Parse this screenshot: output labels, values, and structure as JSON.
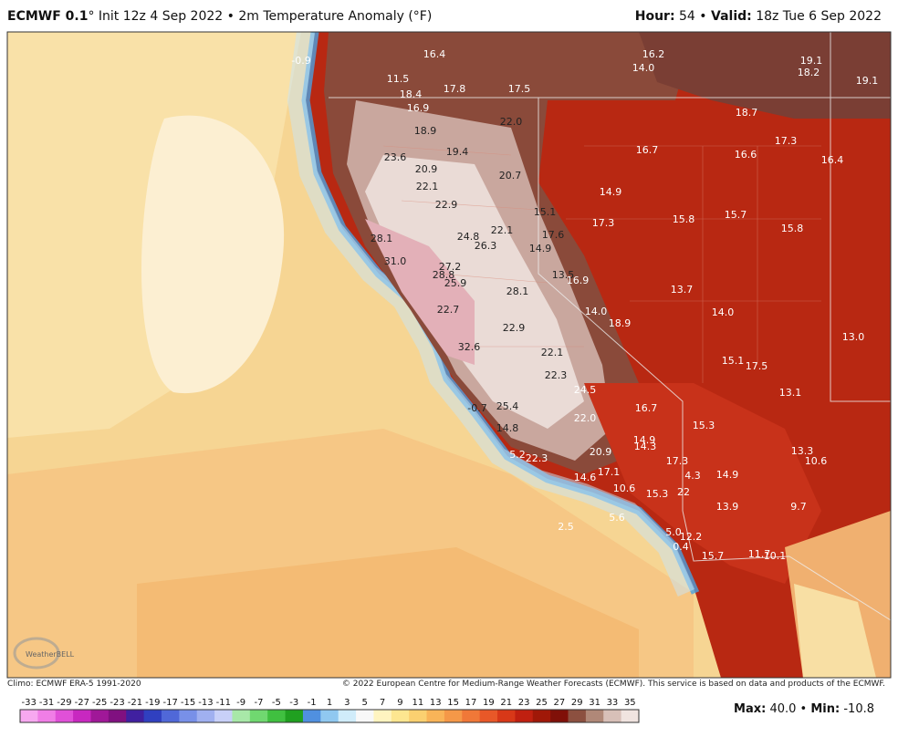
{
  "header": {
    "model": "ECMWF 0.1",
    "title": "° Init 12z 4 Sep 2022 • 2m Temperature Anomaly (°F)",
    "hour_label": "Hour:",
    "hour": "54",
    "separator": "•",
    "valid_label": "Valid:",
    "valid": "18z Tue 6 Sep 2022"
  },
  "map": {
    "logo": "WeatherBELL",
    "labels": [
      "-0.9",
      "16.4",
      "16.2",
      "19.1",
      "14.0",
      "18.2",
      "19.1",
      "11.5",
      "17.8",
      "17.5",
      "18.4",
      "16.9",
      "18.7",
      "22.0",
      "18.9",
      "17.3",
      "16.7",
      "16.6",
      "16.4",
      "19.4",
      "23.6",
      "20.9",
      "20.7",
      "22.1",
      "14.9",
      "22.9",
      "15.1",
      "15.8",
      "15.7",
      "17.3",
      "22.1",
      "17.6",
      "15.8",
      "24.8",
      "28.1",
      "26.3",
      "14.9",
      "31.0",
      "27.2",
      "28.8",
      "25.9",
      "13.5",
      "16.9",
      "13.7",
      "28.1",
      "22.7",
      "14.0",
      "14.0",
      "18.9",
      "22.9",
      "13.0",
      "32.6",
      "22.1",
      "15.1",
      "17.5",
      "22.3",
      "24.5",
      "13.1",
      "-0.7",
      "25.4",
      "16.7",
      "22.0",
      "15.3",
      "14.8",
      "14.9",
      "14.3",
      "13.3",
      "20.9",
      "5.2",
      "22.3",
      "17.3",
      "10.6",
      "17.1",
      "4.3",
      "14.9",
      "14.6",
      "10.6",
      "15.3",
      "22",
      "13.9",
      "9.7",
      "2.5",
      "5.6",
      "5.0",
      "12.2",
      "0.4",
      "15.7",
      "11.7",
      "10.1"
    ]
  },
  "footer": {
    "climo": "Climo: ECMWF ERA-5 1991-2020",
    "copyright": "© 2022 European Centre for Medium-Range Weather Forecasts (ECMWF). This service is based on data and products of the ECMWF."
  },
  "colorbar": {
    "ticks": [
      -33,
      -31,
      -29,
      -27,
      -25,
      -23,
      -21,
      -19,
      -17,
      -15,
      -13,
      -11,
      -9,
      -7,
      -5,
      -3,
      -1,
      1,
      3,
      5,
      7,
      9,
      11,
      13,
      15,
      17,
      19,
      21,
      23,
      25,
      27,
      29,
      31,
      33,
      35
    ]
  },
  "stats": {
    "max_label": "Max:",
    "max": "40.0",
    "separator": "•",
    "min_label": "Min:",
    "min": "-10.8"
  }
}
